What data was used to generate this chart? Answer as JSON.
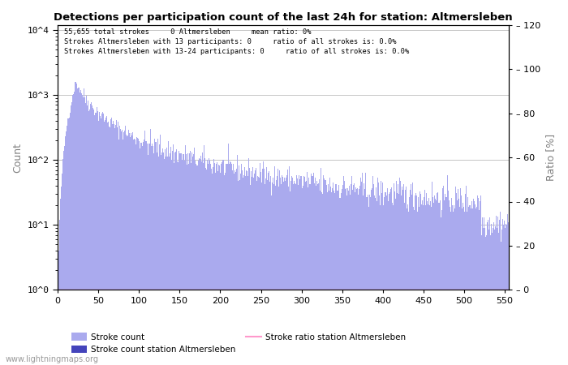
{
  "title": "Detections per participation count of the last 24h for station: Altmersleben",
  "annotation_lines": [
    "55,655 total strokes     0 Altmersleben     mean ratio: 0%",
    "Strokes Altmersleben with 13 participants: 0     ratio of all strokes is: 0.0%",
    "Strokes Altmersleben with 13-24 participants: 0     ratio of all strokes is: 0.0%"
  ],
  "xlabel": "Participants",
  "ylabel_left": "Count",
  "ylabel_right": "Ratio [%]",
  "bar_color_light": "#aaaaee",
  "bar_color_dark": "#4444bb",
  "line_color": "#ff99cc",
  "watermark": "www.lightningmaps.org",
  "legend_labels": [
    "Stroke count",
    "Stroke count station Altmersleben",
    "Stroke ratio station Altmersleben"
  ],
  "xlim": [
    0,
    555
  ],
  "ylim_right": [
    0,
    120
  ],
  "yticks_right": [
    0,
    20,
    40,
    60,
    80,
    100,
    120
  ],
  "xticks": [
    0,
    50,
    100,
    150,
    200,
    250,
    300,
    350,
    400,
    450,
    500,
    550
  ]
}
